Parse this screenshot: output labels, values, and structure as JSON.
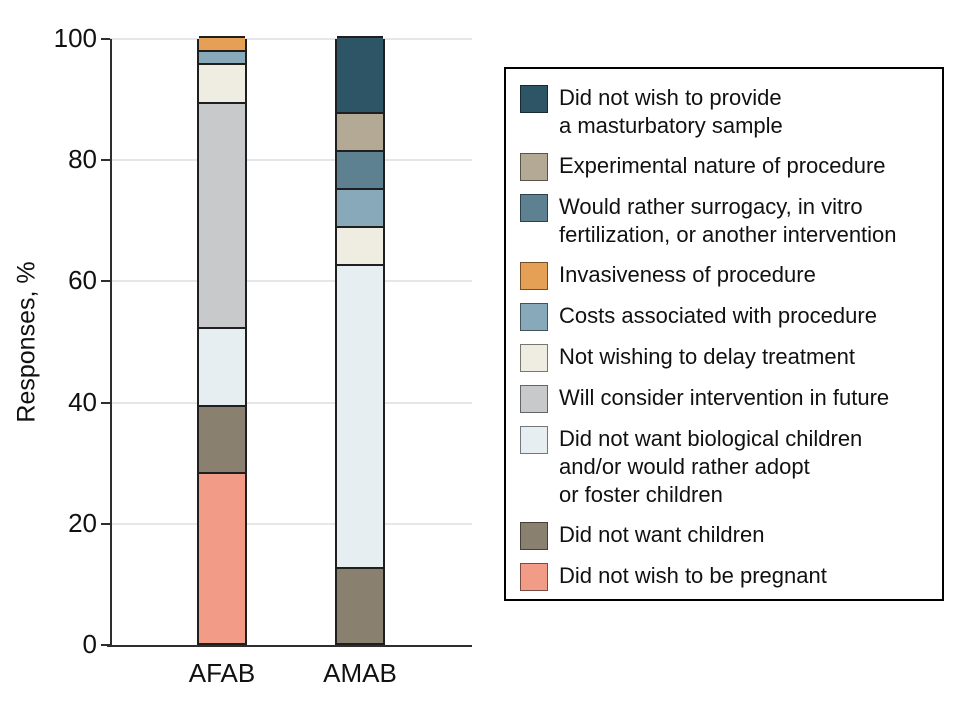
{
  "chart_data": {
    "type": "bar",
    "stacked": true,
    "orientation": "vertical",
    "title": "",
    "xlabel": "",
    "ylabel": "Responses, %",
    "ylim": [
      0,
      100
    ],
    "yticks": [
      0,
      20,
      40,
      60,
      80,
      100
    ],
    "grid": "horizontal",
    "legend_position": "right",
    "categories": [
      "AFAB",
      "AMAB"
    ],
    "series": [
      {
        "name": "Did not wish to provide\na masturbatory sample",
        "color": "#2e5565",
        "values": [
          0,
          12.5
        ]
      },
      {
        "name": "Experimental nature of procedure",
        "color": "#b3a994",
        "values": [
          0,
          6.3
        ]
      },
      {
        "name": "Would rather surrogacy, in vitro\nfertilization, or another intervention",
        "color": "#5e8191",
        "values": [
          0,
          6.3
        ]
      },
      {
        "name": "Invasiveness of procedure",
        "color": "#e6a055",
        "values": [
          2.2,
          0
        ]
      },
      {
        "name": "Costs associated with procedure",
        "color": "#88a9ba",
        "values": [
          2.2,
          6.3
        ]
      },
      {
        "name": "Not wishing to delay treatment",
        "color": "#efede2",
        "values": [
          6.5,
          6.3
        ]
      },
      {
        "name": "Will consider intervention in future",
        "color": "#c7c9cb",
        "values": [
          37.0,
          0
        ]
      },
      {
        "name": "Did not want biological children\nand/or would rather adopt\nor foster children",
        "color": "#e6eef2",
        "values": [
          13.0,
          50.0
        ]
      },
      {
        "name": "Did not want children",
        "color": "#898070",
        "values": [
          10.9,
          12.5
        ]
      },
      {
        "name": "Did not wish to be pregnant",
        "color": "#f29b87",
        "values": [
          28.3,
          0
        ]
      }
    ]
  }
}
